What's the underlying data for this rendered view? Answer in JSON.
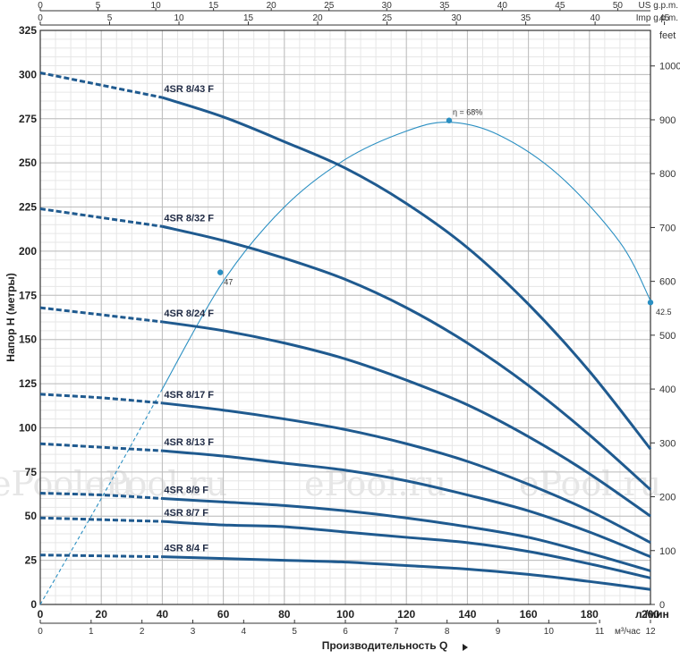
{
  "chart_data": {
    "type": "line",
    "title": "",
    "xlabel": "Производительность Q",
    "xunit_primary": "л /мин",
    "xunit_m3": "м³/час",
    "ylabel": "Напор H (метры)",
    "yunit_right": "feet",
    "xlim": [
      0,
      200
    ],
    "ylim": [
      0,
      325
    ],
    "x_ticks": [
      0,
      20,
      40,
      60,
      80,
      100,
      120,
      140,
      160,
      180,
      200
    ],
    "y_ticks": [
      0,
      25,
      50,
      75,
      100,
      125,
      150,
      175,
      200,
      225,
      250,
      275,
      300,
      325
    ],
    "feet_ticks": [
      0,
      100,
      200,
      300,
      400,
      500,
      600,
      700,
      800,
      900,
      1000
    ],
    "feet_max": 1066,
    "us_gpm_label": "US g.p.m.",
    "us_gpm_ticks": [
      0,
      5,
      10,
      15,
      20,
      25,
      30,
      35,
      40,
      45,
      50
    ],
    "imp_gpm_label": "Imp g.p.m.",
    "imp_gpm_ticks": [
      0,
      5,
      10,
      15,
      20,
      25,
      30,
      35,
      40,
      45
    ],
    "m3h_ticks": [
      0,
      1,
      2,
      3,
      4,
      5,
      6,
      7,
      8,
      9,
      10,
      11,
      12
    ],
    "grid": true,
    "series": [
      {
        "name": "4SR 8/43 F",
        "dashed_x": [
          0,
          40
        ],
        "x": [
          0,
          20,
          40,
          60,
          80,
          100,
          120,
          140,
          160,
          180,
          200
        ],
        "values": [
          301,
          294,
          287,
          276,
          262,
          247,
          227,
          202,
          170,
          132,
          88
        ]
      },
      {
        "name": "4SR 8/32 F",
        "dashed_x": [
          0,
          40
        ],
        "x": [
          0,
          20,
          40,
          60,
          80,
          100,
          120,
          140,
          160,
          180,
          200
        ],
        "values": [
          224,
          219,
          214,
          206,
          196,
          184,
          168,
          148,
          124,
          96,
          65
        ]
      },
      {
        "name": "4SR 8/24 F",
        "dashed_x": [
          0,
          40
        ],
        "x": [
          0,
          20,
          40,
          60,
          80,
          100,
          120,
          140,
          160,
          180,
          200
        ],
        "values": [
          168,
          164,
          160,
          155,
          148,
          139,
          127,
          113,
          95,
          74,
          50
        ]
      },
      {
        "name": "4SR 8/17 F",
        "dashed_x": [
          0,
          40
        ],
        "x": [
          0,
          20,
          40,
          60,
          80,
          100,
          120,
          140,
          160,
          180,
          200
        ],
        "values": [
          119,
          117,
          114,
          110,
          105,
          99,
          91,
          81,
          68,
          53,
          35
        ]
      },
      {
        "name": "4SR 8/13 F",
        "dashed_x": [
          0,
          40
        ],
        "x": [
          0,
          20,
          40,
          60,
          80,
          100,
          120,
          140,
          160,
          180,
          200
        ],
        "values": [
          91,
          89,
          87,
          84,
          80,
          76,
          70,
          62,
          53,
          41,
          27
        ]
      },
      {
        "name": "4SR 8/9 F",
        "dashed_x": [
          0,
          40
        ],
        "x": [
          0,
          20,
          40,
          60,
          80,
          100,
          120,
          140,
          160,
          180,
          200
        ],
        "values": [
          63,
          62,
          60,
          58,
          56,
          53,
          49,
          44,
          38,
          29,
          19
        ]
      },
      {
        "name": "4SR 8/7 F",
        "dashed_x": [
          0,
          40
        ],
        "x": [
          0,
          20,
          40,
          60,
          80,
          100,
          120,
          140,
          160,
          180,
          200
        ],
        "values": [
          49,
          48,
          47,
          45,
          44,
          41,
          38,
          35,
          30,
          23,
          15
        ]
      },
      {
        "name": "4SR 8/4 F",
        "dashed_x": [
          0,
          40
        ],
        "x": [
          0,
          20,
          40,
          60,
          80,
          100,
          120,
          140,
          160,
          180,
          200
        ],
        "values": [
          28,
          27.5,
          27,
          26,
          25,
          24,
          22,
          20,
          17,
          13,
          8.5
        ]
      }
    ],
    "efficiency_curve": {
      "dashed_x": [
        0,
        40
      ],
      "x": [
        0,
        20,
        40,
        60,
        80,
        100,
        120,
        134,
        150,
        170,
        190,
        200
      ],
      "values": [
        0,
        60,
        122,
        183,
        225,
        252,
        268,
        273,
        266,
        243,
        205,
        172
      ],
      "markers": [
        {
          "x": 59,
          "y": 188,
          "label": "47"
        },
        {
          "x": 134,
          "y": 274,
          "label": "η = 68%"
        },
        {
          "x": 200,
          "y": 171,
          "label": "42.5"
        }
      ]
    },
    "watermark": "ePool.ru"
  }
}
